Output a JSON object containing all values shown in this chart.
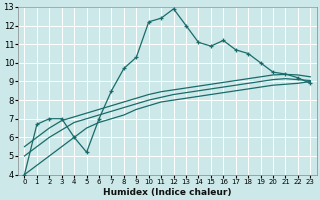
{
  "xlabel": "Humidex (Indice chaleur)",
  "bg_color": "#cce8e8",
  "line_color": "#1a6b6b",
  "grid_color": "#ffffff",
  "xlim": [
    -0.5,
    23.5
  ],
  "ylim": [
    4,
    13
  ],
  "xticks": [
    0,
    1,
    2,
    3,
    4,
    5,
    6,
    7,
    8,
    9,
    10,
    11,
    12,
    13,
    14,
    15,
    16,
    17,
    18,
    19,
    20,
    21,
    22,
    23
  ],
  "yticks": [
    4,
    5,
    6,
    7,
    8,
    9,
    10,
    11,
    12,
    13
  ],
  "line1_x": [
    0,
    1,
    2,
    3,
    4,
    5,
    6,
    7,
    8,
    9,
    10,
    11,
    12,
    13,
    14,
    15,
    16,
    17,
    18,
    19,
    20,
    21,
    22,
    23
  ],
  "line1_y": [
    4.0,
    6.7,
    7.0,
    7.0,
    6.0,
    5.2,
    7.0,
    8.5,
    9.7,
    10.3,
    12.2,
    12.4,
    12.9,
    12.0,
    11.1,
    10.9,
    11.2,
    10.7,
    10.5,
    10.0,
    9.5,
    9.4,
    9.2,
    8.9
  ],
  "line2_x": [
    0,
    1,
    2,
    3,
    4,
    5,
    6,
    7,
    8,
    9,
    10,
    11,
    12,
    13,
    14,
    15,
    16,
    17,
    18,
    19,
    20,
    21,
    22,
    23
  ],
  "line2_y": [
    4.0,
    4.5,
    5.0,
    5.5,
    6.0,
    6.5,
    6.8,
    7.0,
    7.2,
    7.5,
    7.7,
    7.9,
    8.0,
    8.1,
    8.2,
    8.3,
    8.4,
    8.5,
    8.6,
    8.7,
    8.8,
    8.85,
    8.9,
    9.0
  ],
  "line3_x": [
    0,
    1,
    2,
    3,
    4,
    5,
    6,
    7,
    8,
    9,
    10,
    11,
    12,
    13,
    14,
    15,
    16,
    17,
    18,
    19,
    20,
    21,
    22,
    23
  ],
  "line3_y": [
    5.0,
    5.5,
    6.0,
    6.4,
    6.8,
    7.0,
    7.2,
    7.4,
    7.6,
    7.8,
    8.0,
    8.15,
    8.3,
    8.4,
    8.5,
    8.6,
    8.7,
    8.8,
    8.9,
    9.0,
    9.1,
    9.15,
    9.1,
    9.05
  ],
  "line4_x": [
    0,
    1,
    2,
    3,
    4,
    5,
    6,
    7,
    8,
    9,
    10,
    11,
    12,
    13,
    14,
    15,
    16,
    17,
    18,
    19,
    20,
    21,
    22,
    23
  ],
  "line4_y": [
    5.5,
    6.0,
    6.5,
    6.9,
    7.1,
    7.3,
    7.5,
    7.7,
    7.9,
    8.1,
    8.3,
    8.45,
    8.55,
    8.65,
    8.75,
    8.85,
    8.95,
    9.05,
    9.15,
    9.25,
    9.35,
    9.38,
    9.35,
    9.25
  ]
}
